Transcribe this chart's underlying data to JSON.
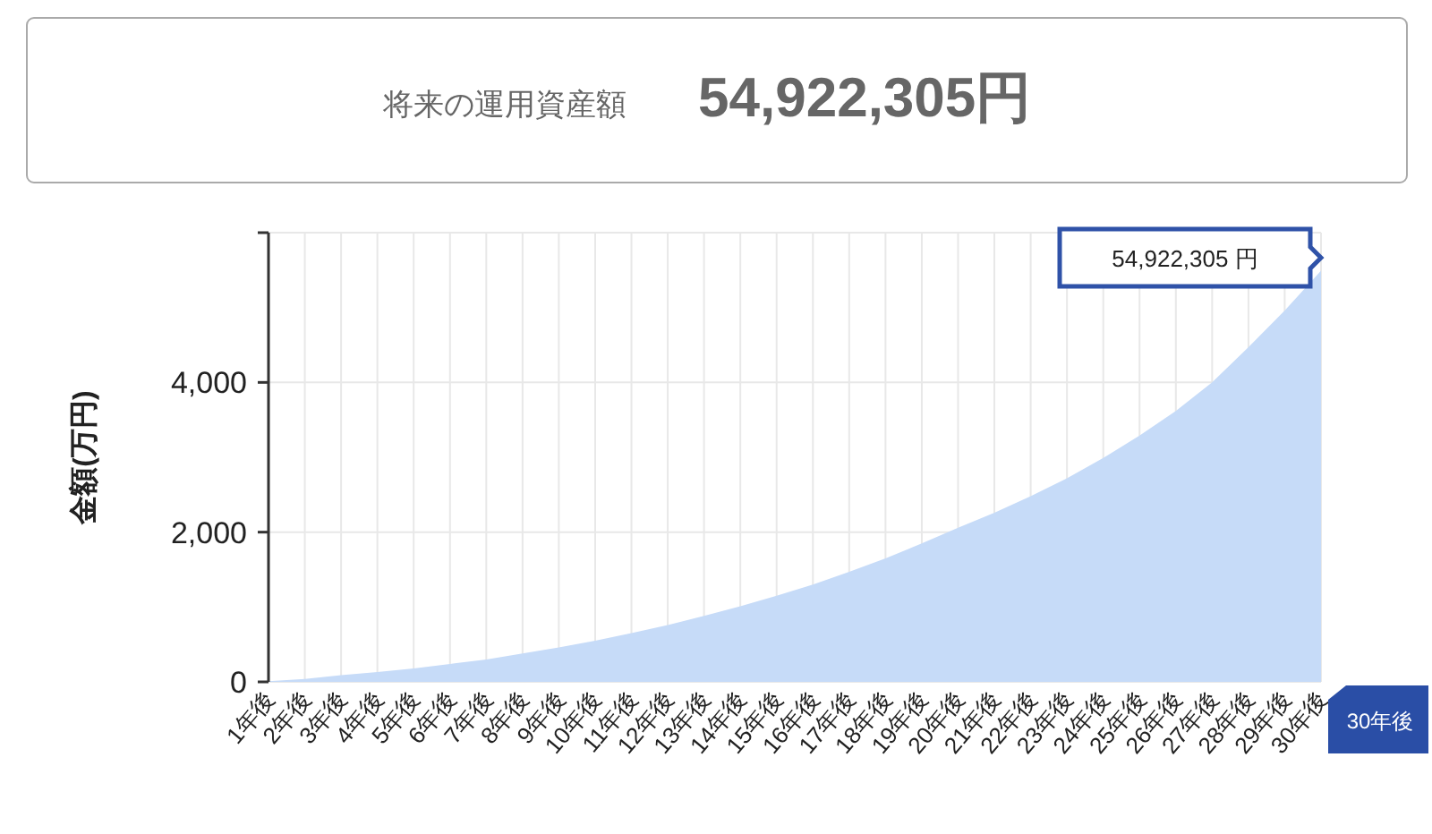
{
  "chart_data": {
    "type": "area",
    "title": "将来の運用資産額",
    "subtitle": "54,922,305円",
    "ylabel": "金額(万円)",
    "categories": [
      "1年後",
      "2年後",
      "3年後",
      "4年後",
      "5年後",
      "6年後",
      "7年後",
      "8年後",
      "9年後",
      "10年後",
      "11年後",
      "12年後",
      "13年後",
      "14年後",
      "15年後",
      "16年後",
      "17年後",
      "18年後",
      "19年後",
      "20年後",
      "21年後",
      "22年後",
      "23年後",
      "24年後",
      "25年後",
      "26年後",
      "27年後",
      "28年後",
      "29年後",
      "30年後"
    ],
    "series": [
      {
        "color": "#c6dbf8",
        "values": [
          10,
          40,
          90,
          130,
          180,
          240,
          300,
          380,
          460,
          550,
          650,
          760,
          880,
          1010,
          1150,
          1300,
          1470,
          1650,
          1850,
          2060,
          2260,
          2480,
          2720,
          2990,
          3290,
          3620,
          4000,
          4470,
          4960,
          5492.2305
        ]
      }
    ],
    "ylim": [
      0,
      6000
    ],
    "yticks": [
      0,
      {
        "value": 2000,
        "label": "2,000"
      },
      {
        "value": 4000,
        "label": "4,000"
      },
      {
        "value": 6000,
        "label": null
      }
    ],
    "grid": true,
    "annotations": [
      {
        "text": "54,922,305 円",
        "x": "30年後",
        "y": 5492.2305
      },
      "30年後"
    ]
  }
}
